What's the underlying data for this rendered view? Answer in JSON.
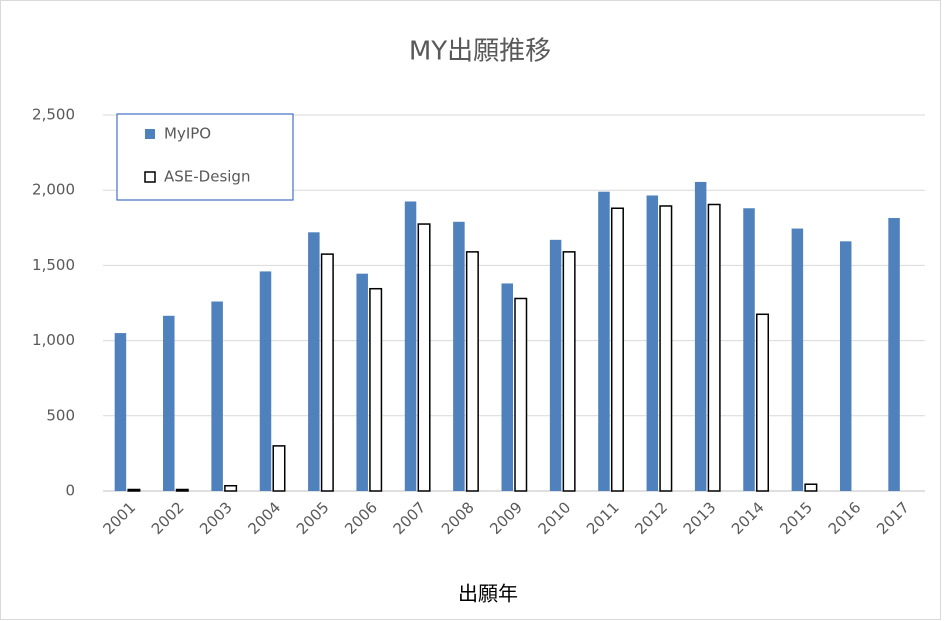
{
  "chart_data": {
    "type": "bar",
    "title": "MY出願推移",
    "x_label": "出願年",
    "categories": [
      "2001",
      "2002",
      "2003",
      "2004",
      "2005",
      "2006",
      "2007",
      "2008",
      "2009",
      "2010",
      "2011",
      "2012",
      "2013",
      "2014",
      "2015",
      "2016",
      "2017"
    ],
    "series": [
      {
        "name": "MyIPO",
        "color": "#4f81bd",
        "values": [
          1050,
          1165,
          1260,
          1460,
          1720,
          1445,
          1925,
          1790,
          1380,
          1670,
          1990,
          1965,
          2055,
          1880,
          1745,
          1660,
          1815
        ]
      },
      {
        "name": "ASE-Design",
        "color": "#ffffff",
        "values": [
          10,
          10,
          35,
          300,
          1575,
          1345,
          1775,
          1590,
          1280,
          1590,
          1880,
          1895,
          1905,
          1175,
          45,
          null,
          null
        ]
      }
    ],
    "ylim": [
      0,
      2500
    ],
    "yticks": [
      0,
      500,
      {
        "value": 1000,
        "label": "1,000"
      },
      {
        "value": 1500,
        "label": "1,500"
      },
      {
        "value": 2000,
        "label": "2,000"
      },
      {
        "value": 2500,
        "label": "2,500"
      }
    ],
    "grid": true,
    "legend": "upper left"
  }
}
